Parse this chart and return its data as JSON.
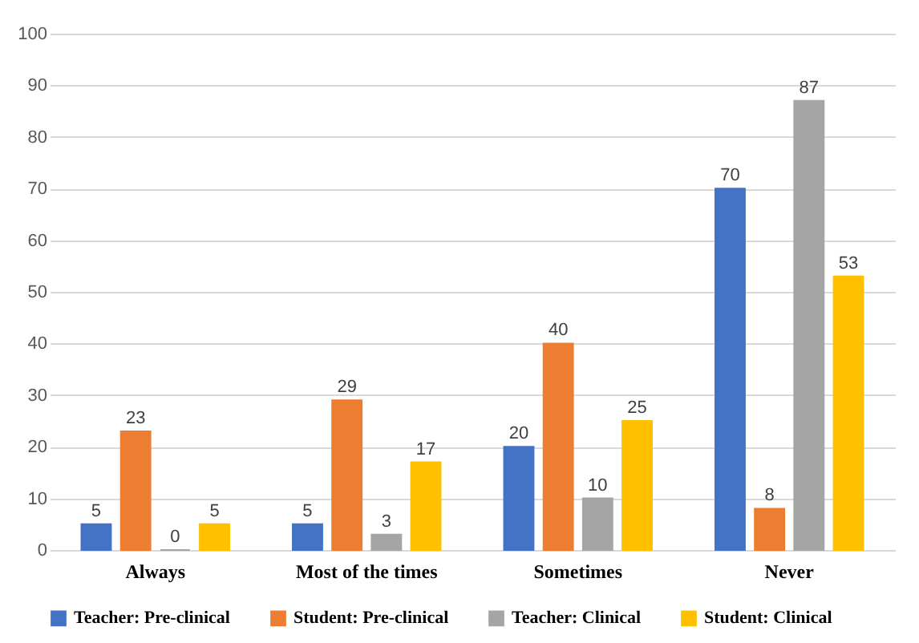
{
  "chart_data": {
    "type": "bar",
    "categories": [
      "Always",
      "Most of the times",
      "Sometimes",
      "Never"
    ],
    "series": [
      {
        "name": "Teacher: Pre-clinical",
        "color": "#4472c4",
        "values": [
          5,
          5,
          20,
          70
        ]
      },
      {
        "name": "Student: Pre-clinical",
        "color": "#ed7d31",
        "values": [
          23,
          29,
          40,
          8
        ]
      },
      {
        "name": "Teacher: Clinical",
        "color": "#a5a5a5",
        "values": [
          0,
          3,
          10,
          87
        ]
      },
      {
        "name": "Student: Clinical",
        "color": "#ffc000",
        "values": [
          5,
          17,
          25,
          53
        ]
      }
    ],
    "ylim": [
      0,
      100
    ],
    "yticks": [
      0,
      10,
      20,
      30,
      40,
      50,
      60,
      70,
      80,
      90,
      100
    ],
    "grid": "y",
    "legend": "bottom",
    "data_labels": true
  }
}
